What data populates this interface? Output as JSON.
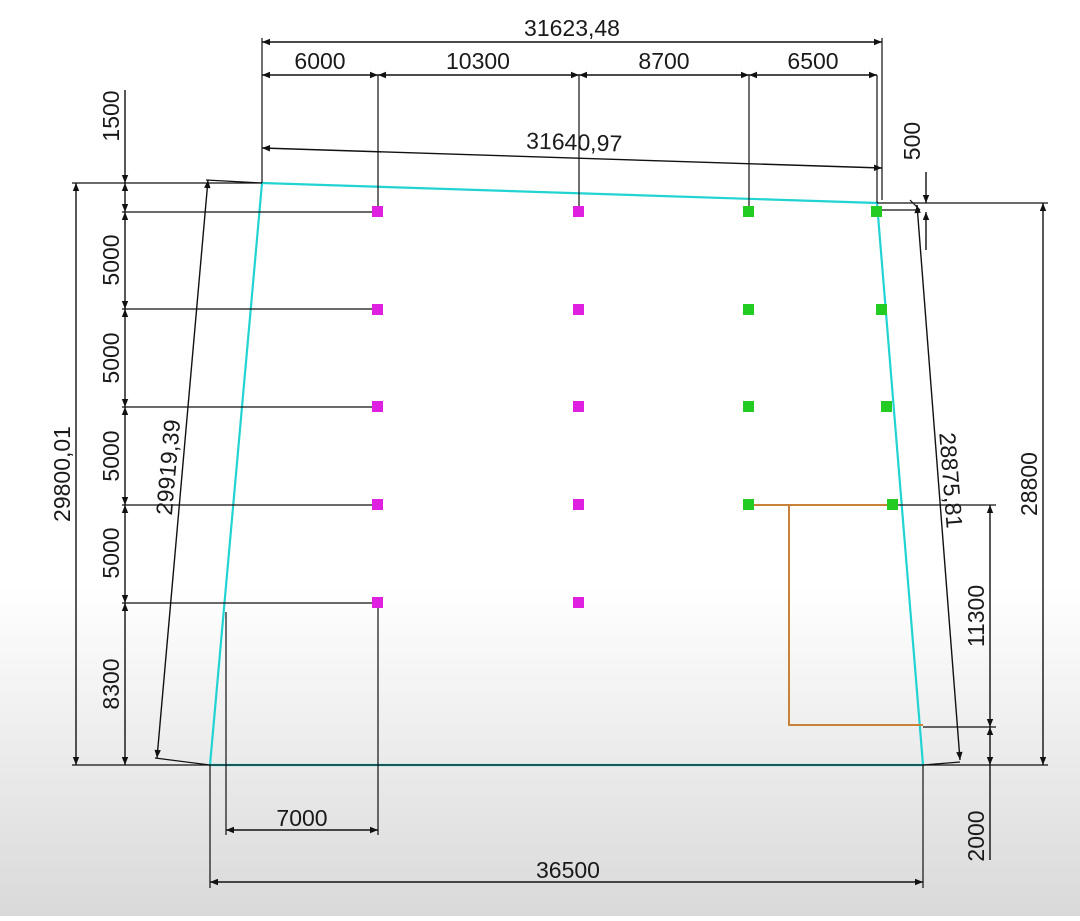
{
  "colors": {
    "outline": "#22d3d3",
    "existing_points": "#e020e0",
    "new_points": "#22cc22",
    "zone": "#c8823a",
    "dimension_lines": "#111111"
  },
  "dimensions": {
    "top_overall": "31623,48",
    "top_seg_1": "6000",
    "top_seg_2": "10300",
    "top_seg_3": "8700",
    "top_seg_4": "6500",
    "top_slanted": "31640,97",
    "left_seg_top": "1500",
    "left_seg_1": "5000",
    "left_seg_2": "5000",
    "left_seg_3": "5000",
    "left_seg_4": "5000",
    "left_seg_bottom": "8300",
    "left_overall": "29800,01",
    "left_slanted": "29919,39",
    "right_offset": "500",
    "right_slanted": "28875,81",
    "right_overall": "28800",
    "right_zone_height": "11300",
    "right_bottom": "2000",
    "bottom_offset": "7000",
    "bottom_overall": "36500"
  }
}
